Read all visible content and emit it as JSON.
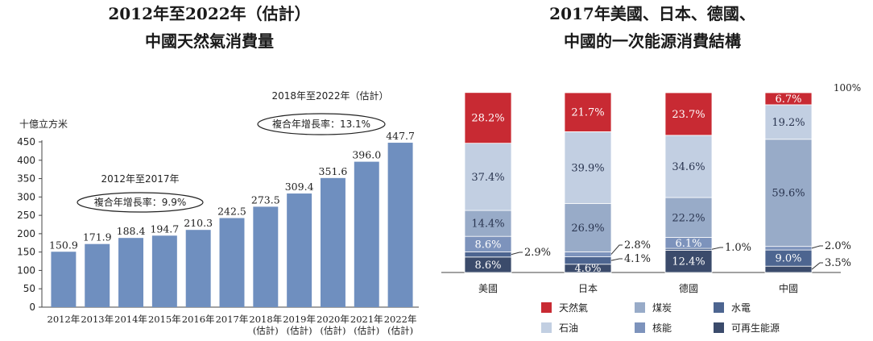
{
  "chart_data": [
    {
      "type": "bar",
      "title_line1": "2012年至2022年（估計）",
      "title_line2": "中國天然氣消費量",
      "ylabel": "十億立方米",
      "ylim": [
        0,
        450
      ],
      "yticks": [
        0,
        50,
        100,
        150,
        200,
        250,
        300,
        350,
        400,
        450
      ],
      "categories": [
        [
          "2012年"
        ],
        [
          "2013年"
        ],
        [
          "2014年"
        ],
        [
          "2015年"
        ],
        [
          "2016年"
        ],
        [
          "2017年"
        ],
        [
          "2018年",
          "(估計)"
        ],
        [
          "2019年",
          "(估計)"
        ],
        [
          "2020年",
          "(估計)"
        ],
        [
          "2021年",
          "(估計)"
        ],
        [
          "2022年",
          "(估計)"
        ]
      ],
      "values": [
        150.9,
        171.9,
        188.4,
        194.7,
        210.3,
        242.5,
        273.5,
        309.4,
        351.6,
        396.0,
        447.7
      ],
      "value_labels": [
        "150.9",
        "171.9",
        "188.4",
        "194.7",
        "210.3",
        "242.5",
        "273.5",
        "309.4",
        "351.6",
        "396.0",
        "447.7"
      ],
      "bar_color": "#6f8fbf",
      "annotations": [
        {
          "period": "2012年至2017年",
          "cagr": "複合年增長率：9.9%"
        },
        {
          "period": "2018年至2022年（估計）",
          "cagr": "複合年增長率：13.1%"
        }
      ]
    },
    {
      "type": "stacked_bar",
      "title_line1": "2017年美國、日本、德國、",
      "title_line2": "中國的一次能源消費結構",
      "categories": [
        "美國",
        "日本",
        "德國",
        "中國"
      ],
      "top_label": "100%",
      "series": [
        {
          "name": "可再生能源",
          "color": "#3b4b6b",
          "values": [
            8.6,
            4.6,
            12.4,
            3.5
          ]
        },
        {
          "name": "水電",
          "color": "#4d6590",
          "values": [
            2.9,
            4.1,
            1.0,
            9.0
          ]
        },
        {
          "name": "核能",
          "color": "#7d93bc",
          "values": [
            8.6,
            2.8,
            6.1,
            2.0
          ]
        },
        {
          "name": "煤炭",
          "color": "#98abc8",
          "values": [
            14.4,
            26.9,
            22.2,
            59.6
          ]
        },
        {
          "name": "石油",
          "color": "#c2cfe2",
          "values": [
            37.4,
            39.9,
            34.6,
            19.2
          ]
        },
        {
          "name": "天然氣",
          "color": "#c82a33",
          "values": [
            28.2,
            21.7,
            23.7,
            6.7
          ]
        }
      ],
      "segment_labels": [
        [
          "8.6%",
          "2.9%",
          "8.6%",
          "14.4%",
          "37.4%",
          "28.2%"
        ],
        [
          "4.6%",
          "4.1%",
          "2.8%",
          "26.9%",
          "39.9%",
          "21.7%"
        ],
        [
          "12.4%",
          "1.0%",
          "6.1%",
          "22.2%",
          "34.6%",
          "23.7%"
        ],
        [
          "3.5%",
          "9.0%",
          "2.0%",
          "59.6%",
          "19.2%",
          "6.7%"
        ]
      ],
      "legend": [
        {
          "name": "天然氣",
          "color": "#c82a33"
        },
        {
          "name": "煤炭",
          "color": "#98abc8"
        },
        {
          "name": "水電",
          "color": "#4d6590"
        },
        {
          "name": "石油",
          "color": "#c2cfe2"
        },
        {
          "name": "核能",
          "color": "#7d93bc"
        },
        {
          "name": "可再生能源",
          "color": "#3b4b6b"
        }
      ]
    }
  ]
}
